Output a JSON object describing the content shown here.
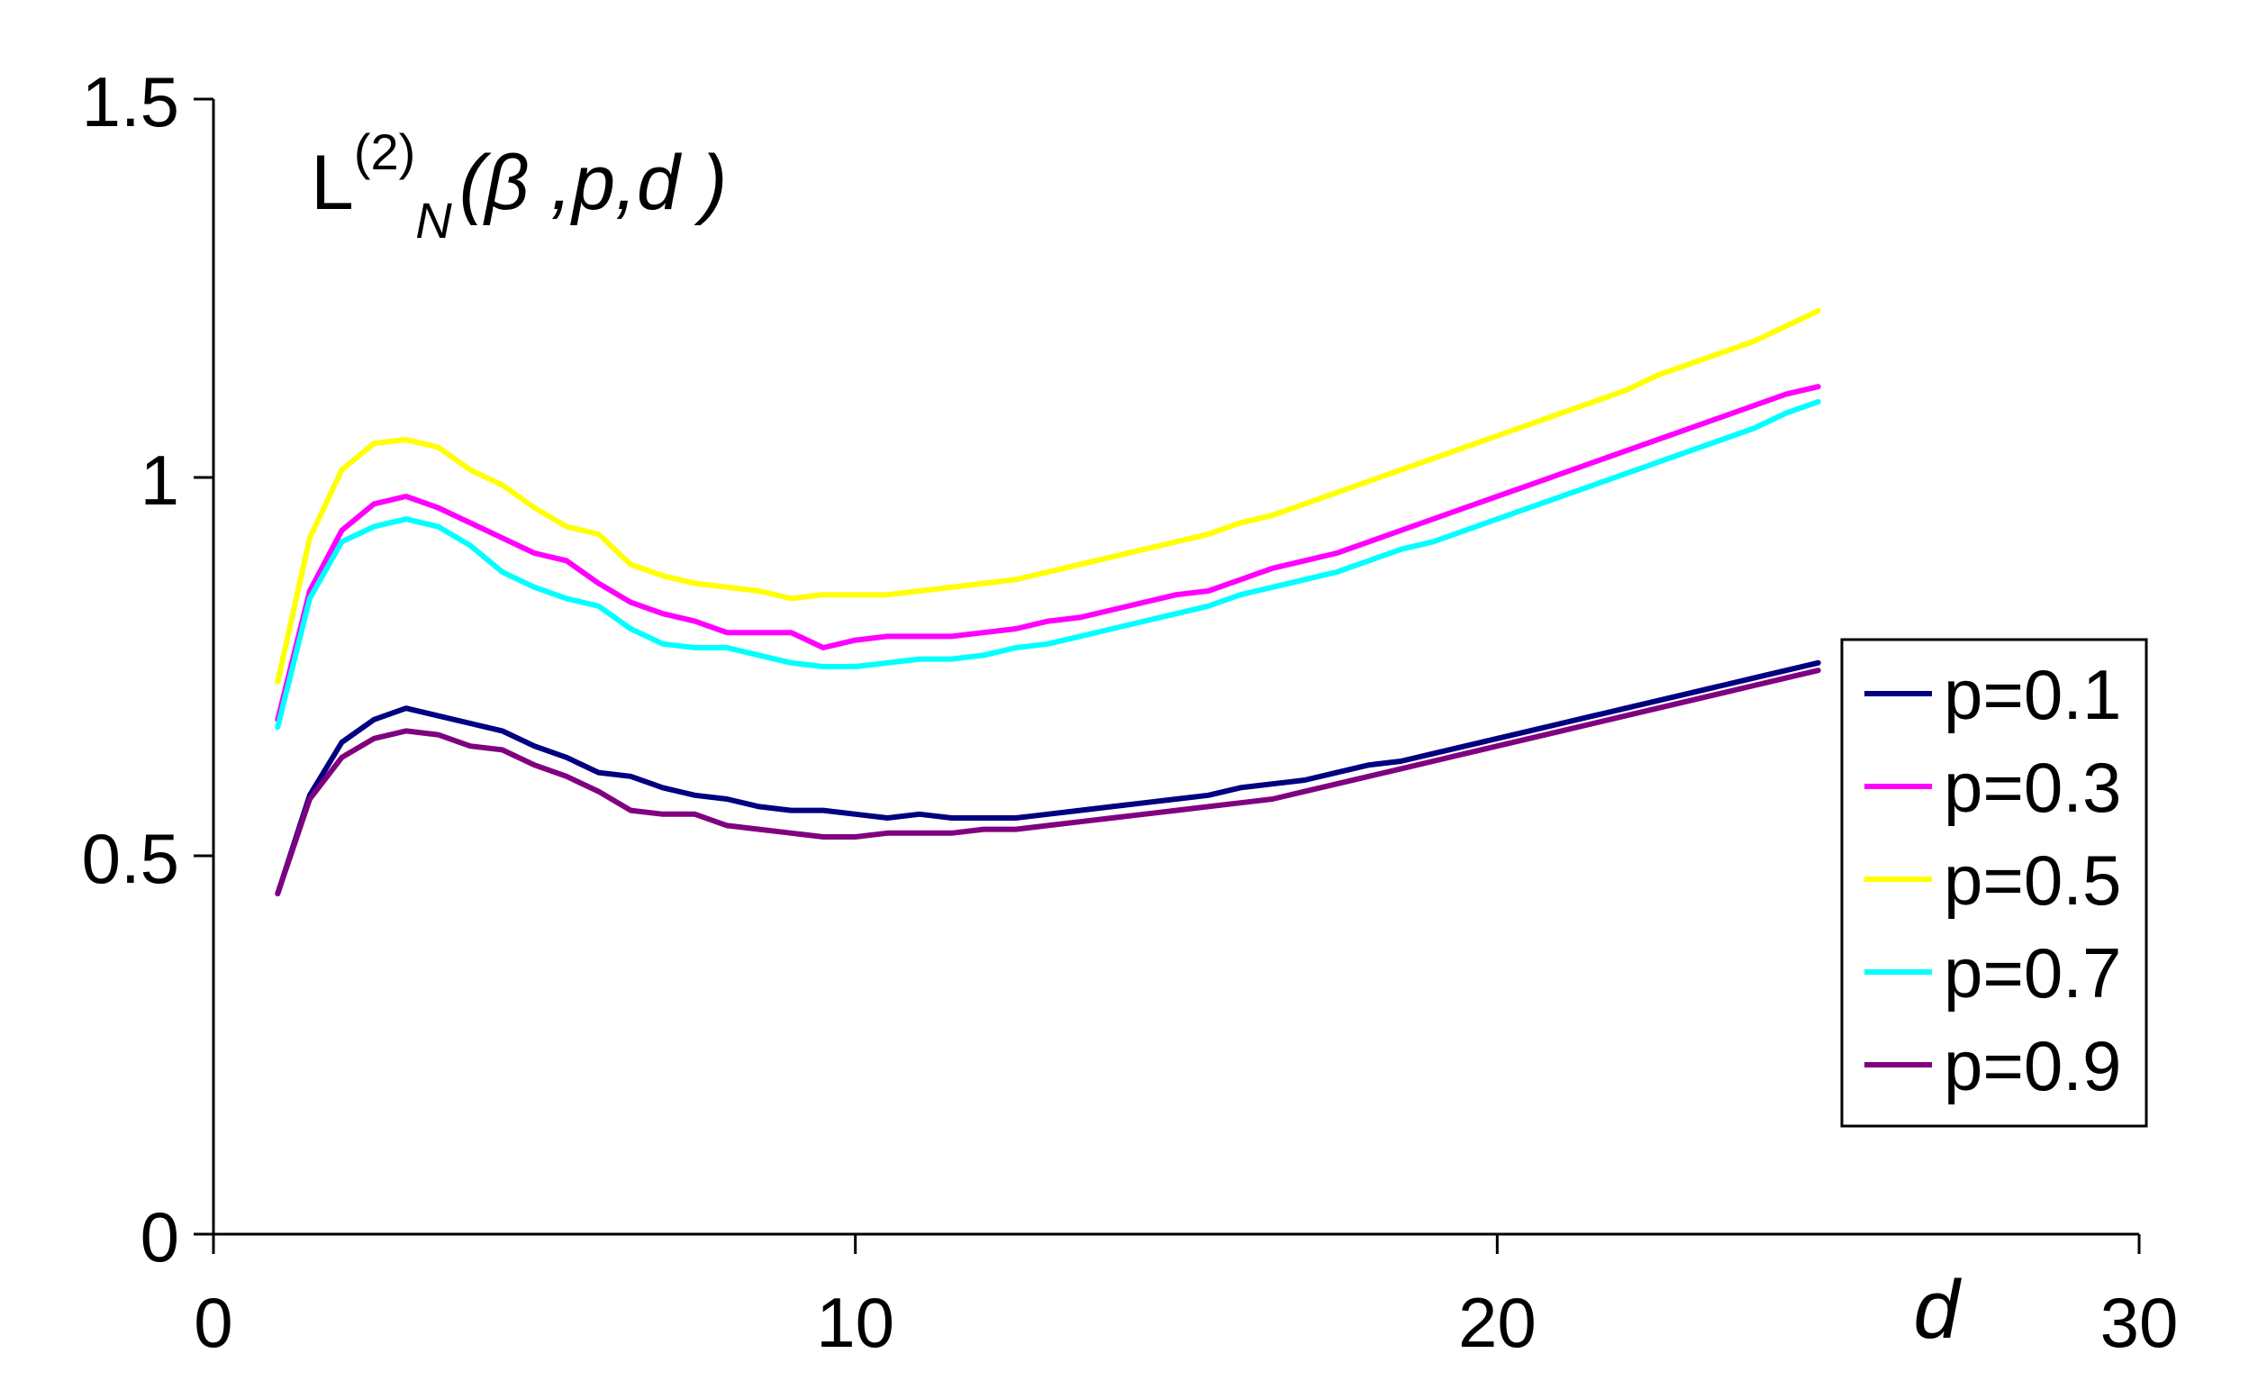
{
  "chart_data": {
    "type": "line",
    "title": {
      "main": "L",
      "sup": "(2)",
      "sub": "N",
      "args": "(β ,p,d )"
    },
    "xlabel": "d",
    "ylabel": "",
    "xlim": [
      0,
      30
    ],
    "ylim": [
      0,
      1.5
    ],
    "xticks": [
      0,
      10,
      20,
      30
    ],
    "yticks": [
      0,
      0.5,
      1,
      1.5
    ],
    "xtick_labels": [
      "0",
      "10",
      "20",
      "30"
    ],
    "ytick_labels": [
      "0",
      "0.5",
      "1",
      "1.5"
    ],
    "grid": false,
    "legend": "right",
    "x": [
      1,
      1.5,
      2,
      2.5,
      3,
      3.5,
      4,
      4.5,
      5,
      5.5,
      6,
      6.5,
      7,
      7.5,
      8,
      8.5,
      9,
      9.5,
      10,
      10.5,
      11,
      11.5,
      12,
      12.5,
      13,
      13.5,
      14,
      14.5,
      15,
      15.5,
      16,
      16.5,
      17,
      17.5,
      18,
      18.5,
      19,
      19.5,
      20,
      20.5,
      21,
      21.5,
      22,
      22.5,
      23,
      23.5,
      24,
      24.5,
      25
    ],
    "series": [
      {
        "name": "p=0.1",
        "color": "#000080",
        "values": [
          0.45,
          0.58,
          0.65,
          0.68,
          0.695,
          0.685,
          0.675,
          0.665,
          0.645,
          0.63,
          0.61,
          0.605,
          0.59,
          0.58,
          0.575,
          0.565,
          0.56,
          0.56,
          0.555,
          0.55,
          0.555,
          0.55,
          0.55,
          0.55,
          0.555,
          0.56,
          0.565,
          0.57,
          0.575,
          0.58,
          0.59,
          0.595,
          0.6,
          0.61,
          0.62,
          0.625,
          0.635,
          0.645,
          0.655,
          0.665,
          0.675,
          0.685,
          0.695,
          0.705,
          0.715,
          0.725,
          0.735,
          0.745,
          0.755
        ]
      },
      {
        "name": "p=0.3",
        "color": "#FF00FF",
        "values": [
          0.68,
          0.85,
          0.93,
          0.965,
          0.975,
          0.96,
          0.94,
          0.92,
          0.9,
          0.89,
          0.86,
          0.835,
          0.82,
          0.81,
          0.795,
          0.795,
          0.795,
          0.775,
          0.785,
          0.79,
          0.79,
          0.79,
          0.795,
          0.8,
          0.81,
          0.815,
          0.825,
          0.835,
          0.845,
          0.85,
          0.865,
          0.88,
          0.89,
          0.9,
          0.915,
          0.93,
          0.945,
          0.96,
          0.975,
          0.99,
          1.005,
          1.02,
          1.035,
          1.05,
          1.065,
          1.08,
          1.095,
          1.11,
          1.12
        ]
      },
      {
        "name": "p=0.5",
        "color": "#FFFF00",
        "values": [
          0.73,
          0.92,
          1.01,
          1.045,
          1.05,
          1.04,
          1.01,
          0.99,
          0.96,
          0.935,
          0.925,
          0.885,
          0.87,
          0.86,
          0.855,
          0.85,
          0.84,
          0.845,
          0.845,
          0.845,
          0.85,
          0.855,
          0.86,
          0.865,
          0.875,
          0.885,
          0.895,
          0.905,
          0.915,
          0.925,
          0.94,
          0.95,
          0.965,
          0.98,
          0.995,
          1.01,
          1.025,
          1.04,
          1.055,
          1.07,
          1.085,
          1.1,
          1.115,
          1.135,
          1.15,
          1.165,
          1.18,
          1.2,
          1.22
        ]
      },
      {
        "name": "p=0.7",
        "color": "#00FFFF",
        "values": [
          0.67,
          0.84,
          0.915,
          0.935,
          0.945,
          0.935,
          0.91,
          0.875,
          0.855,
          0.84,
          0.83,
          0.8,
          0.78,
          0.775,
          0.775,
          0.765,
          0.755,
          0.75,
          0.75,
          0.755,
          0.76,
          0.76,
          0.765,
          0.775,
          0.78,
          0.79,
          0.8,
          0.81,
          0.82,
          0.83,
          0.845,
          0.855,
          0.865,
          0.875,
          0.89,
          0.905,
          0.915,
          0.93,
          0.945,
          0.96,
          0.975,
          0.99,
          1.005,
          1.02,
          1.035,
          1.05,
          1.065,
          1.085,
          1.1
        ]
      },
      {
        "name": "p=0.9",
        "color": "#800080",
        "values": [
          0.45,
          0.575,
          0.63,
          0.655,
          0.665,
          0.66,
          0.645,
          0.64,
          0.62,
          0.605,
          0.585,
          0.56,
          0.555,
          0.555,
          0.54,
          0.535,
          0.53,
          0.525,
          0.525,
          0.53,
          0.53,
          0.53,
          0.535,
          0.535,
          0.54,
          0.545,
          0.55,
          0.555,
          0.56,
          0.565,
          0.57,
          0.575,
          0.585,
          0.595,
          0.605,
          0.615,
          0.625,
          0.635,
          0.645,
          0.655,
          0.665,
          0.675,
          0.685,
          0.695,
          0.705,
          0.715,
          0.725,
          0.735,
          0.745
        ]
      }
    ]
  }
}
